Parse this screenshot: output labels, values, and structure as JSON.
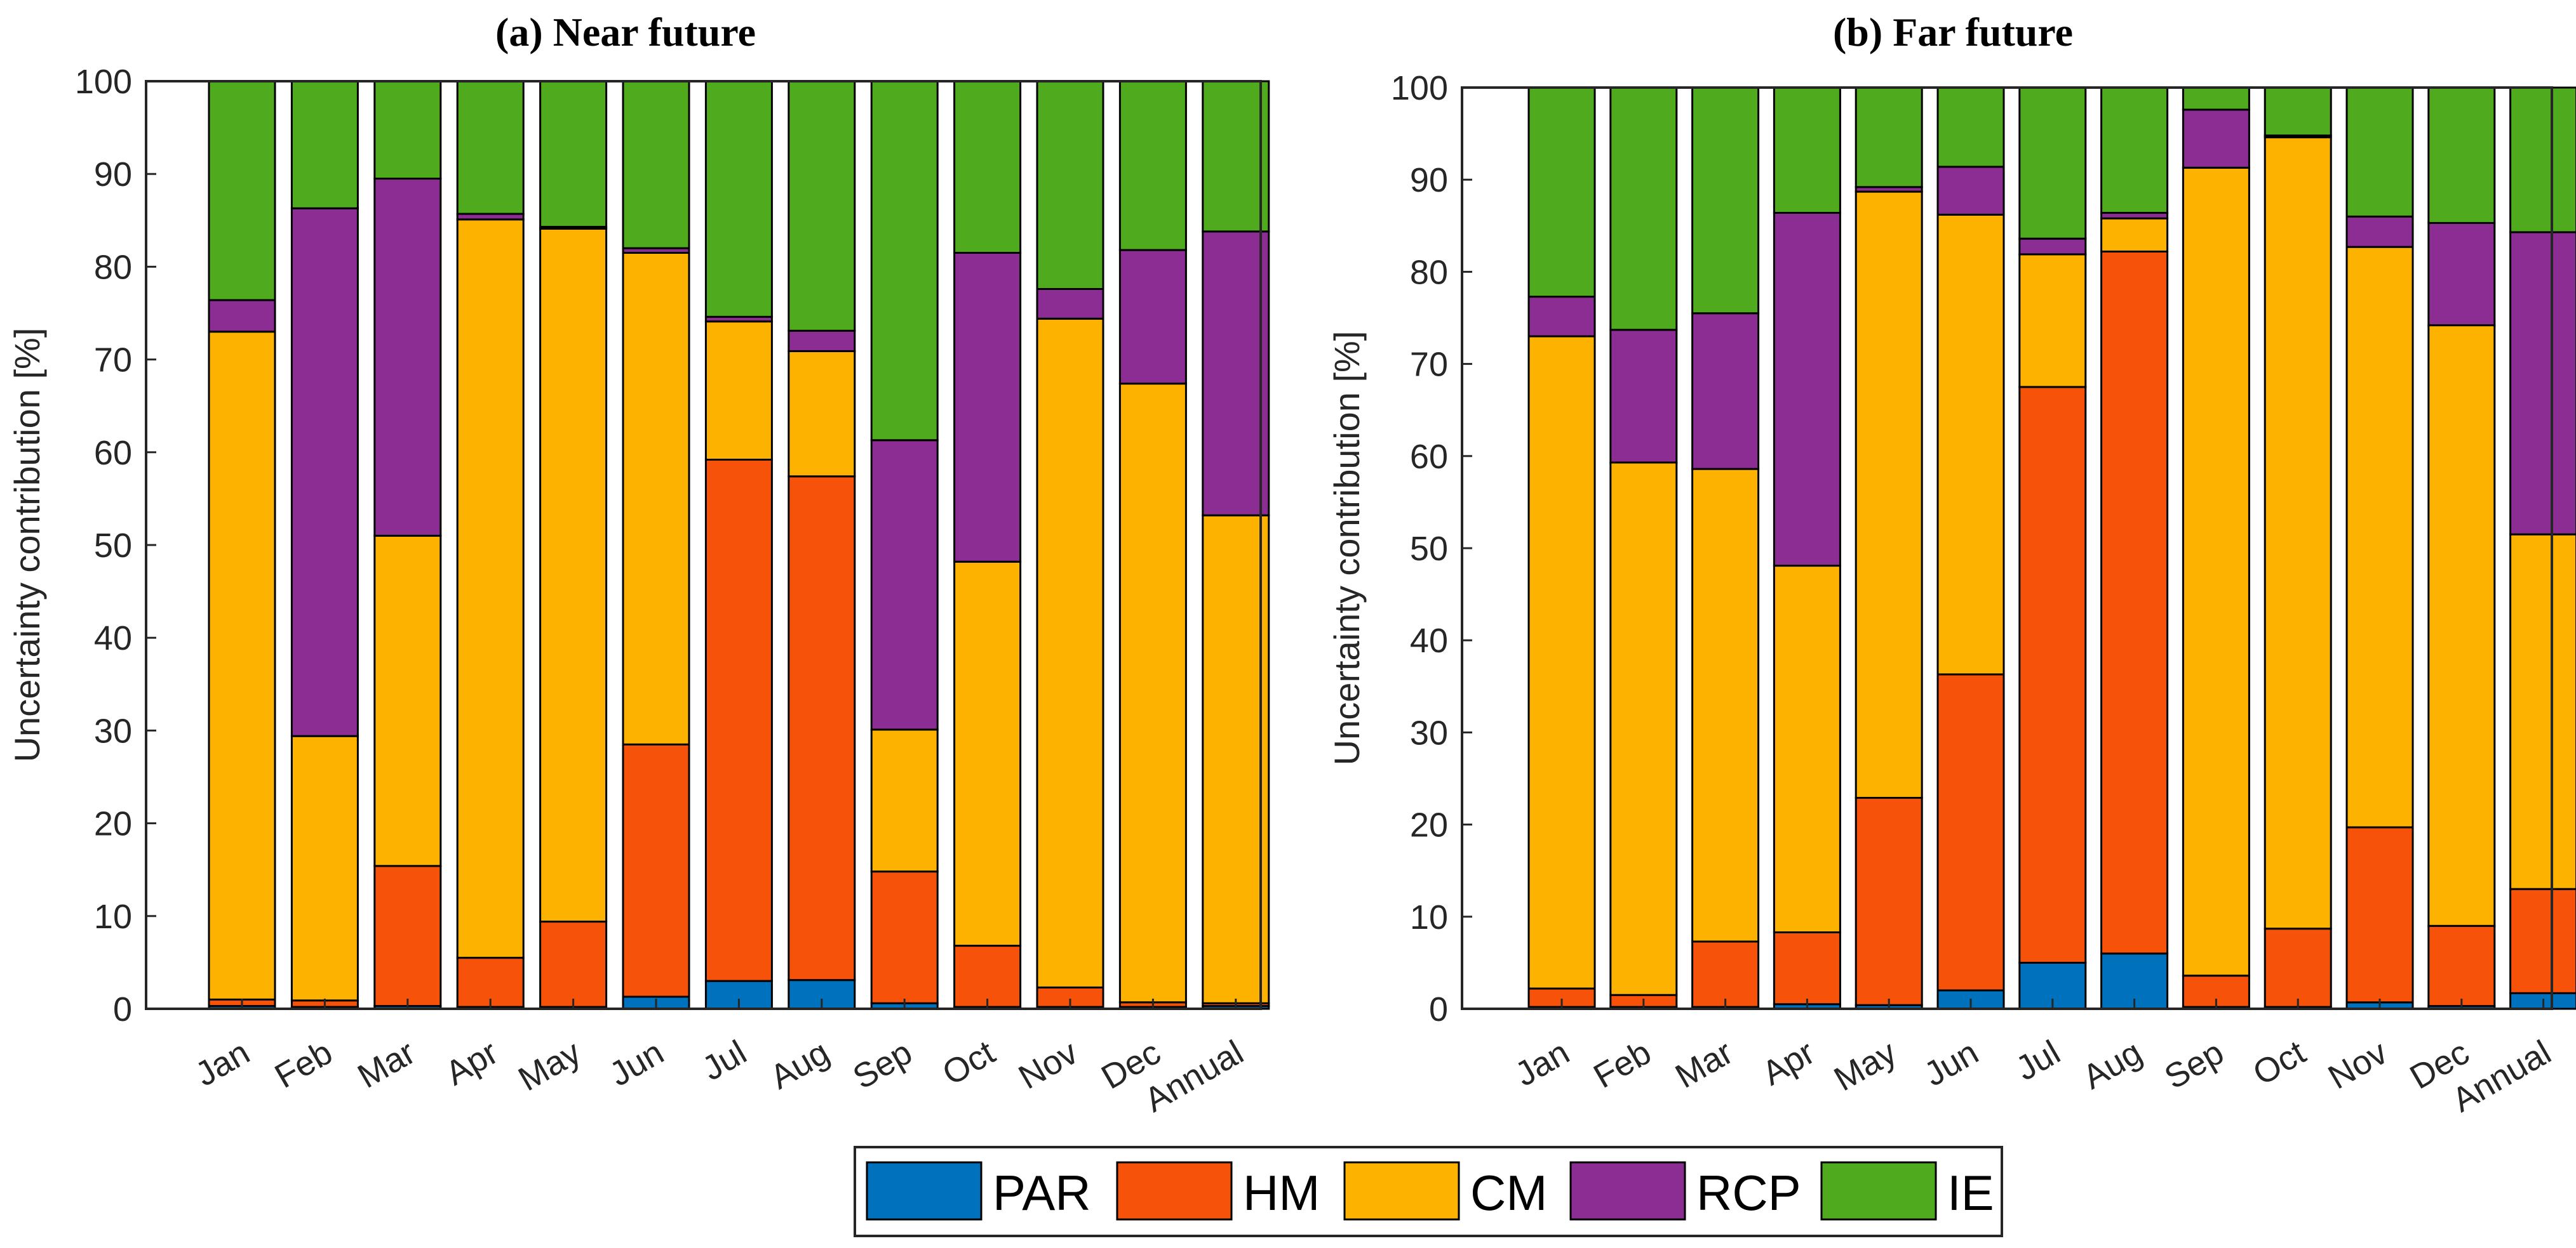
{
  "chart_data": [
    {
      "type": "bar",
      "stacked": true,
      "title": "(a) Near future",
      "xlabel": "",
      "ylabel": "Uncertainty contribution [%]",
      "ylim": [
        0,
        100
      ],
      "yticks": [
        "0",
        "10",
        "20",
        "30",
        "40",
        "50",
        "60",
        "70",
        "80",
        "90",
        "100"
      ],
      "categories": [
        "Jan",
        "Feb",
        "Mar",
        "Apr",
        "May",
        "Jun",
        "Jul",
        "Aug",
        "Sep",
        "Oct",
        "Nov",
        "Dec",
        "Annual"
      ],
      "series": [
        {
          "name": "PAR",
          "values": [
            0.3,
            0.2,
            0.3,
            0.2,
            0.2,
            1.3,
            3.0,
            3.1,
            0.6,
            0.2,
            0.2,
            0.2,
            0.3
          ]
        },
        {
          "name": "HM",
          "values": [
            0.7,
            0.7,
            15.1,
            5.3,
            9.2,
            27.2,
            56.2,
            54.3,
            14.2,
            6.6,
            2.1,
            0.5,
            0.3
          ]
        },
        {
          "name": "CM",
          "values": [
            72.0,
            28.5,
            35.6,
            79.6,
            74.7,
            53.0,
            14.9,
            13.5,
            15.3,
            41.4,
            72.1,
            66.7,
            52.6
          ]
        },
        {
          "name": "RCP",
          "values": [
            3.4,
            56.9,
            38.5,
            0.6,
            0.2,
            0.5,
            0.5,
            2.2,
            31.2,
            33.3,
            3.2,
            14.4,
            30.6
          ]
        },
        {
          "name": "IE",
          "values": [
            23.6,
            13.7,
            10.5,
            14.3,
            15.7,
            18.0,
            25.4,
            26.9,
            38.7,
            18.5,
            22.4,
            18.2,
            16.2
          ]
        }
      ]
    },
    {
      "type": "bar",
      "stacked": true,
      "title": "(b) Far future",
      "xlabel": "",
      "ylabel": "Uncertainty contribution [%]",
      "ylim": [
        0,
        100
      ],
      "yticks": [
        "0",
        "10",
        "20",
        "30",
        "40",
        "50",
        "60",
        "70",
        "80",
        "90",
        "100"
      ],
      "categories": [
        "Jan",
        "Feb",
        "Mar",
        "Apr",
        "May",
        "Jun",
        "Jul",
        "Aug",
        "Sep",
        "Oct",
        "Nov",
        "Dec",
        "Annual"
      ],
      "series": [
        {
          "name": "PAR",
          "values": [
            0.2,
            0.2,
            0.2,
            0.5,
            0.4,
            2.0,
            5.0,
            6.0,
            0.2,
            0.2,
            0.7,
            0.3,
            1.7
          ]
        },
        {
          "name": "HM",
          "values": [
            2.0,
            1.3,
            7.1,
            7.8,
            22.5,
            34.3,
            62.5,
            76.2,
            3.4,
            8.5,
            19.0,
            8.7,
            11.3
          ]
        },
        {
          "name": "CM",
          "values": [
            70.8,
            57.8,
            51.3,
            39.8,
            65.8,
            49.9,
            14.4,
            3.6,
            87.7,
            85.9,
            63.0,
            65.2,
            38.5
          ]
        },
        {
          "name": "RCP",
          "values": [
            4.3,
            14.4,
            16.9,
            38.3,
            0.5,
            5.2,
            1.7,
            0.6,
            6.3,
            0.2,
            3.3,
            11.1,
            32.8
          ]
        },
        {
          "name": "IE",
          "values": [
            22.7,
            26.3,
            24.5,
            13.6,
            10.8,
            8.6,
            16.4,
            13.6,
            2.4,
            5.2,
            14.0,
            14.7,
            15.7
          ]
        }
      ]
    }
  ],
  "legend": {
    "position": "bottom-center",
    "items": [
      {
        "name": "PAR",
        "color": "#0072BD"
      },
      {
        "name": "HM",
        "color": "#F7520A"
      },
      {
        "name": "CM",
        "color": "#FDB200"
      },
      {
        "name": "RCP",
        "color": "#8C2D94"
      },
      {
        "name": "IE",
        "color": "#50AA1E"
      }
    ]
  }
}
